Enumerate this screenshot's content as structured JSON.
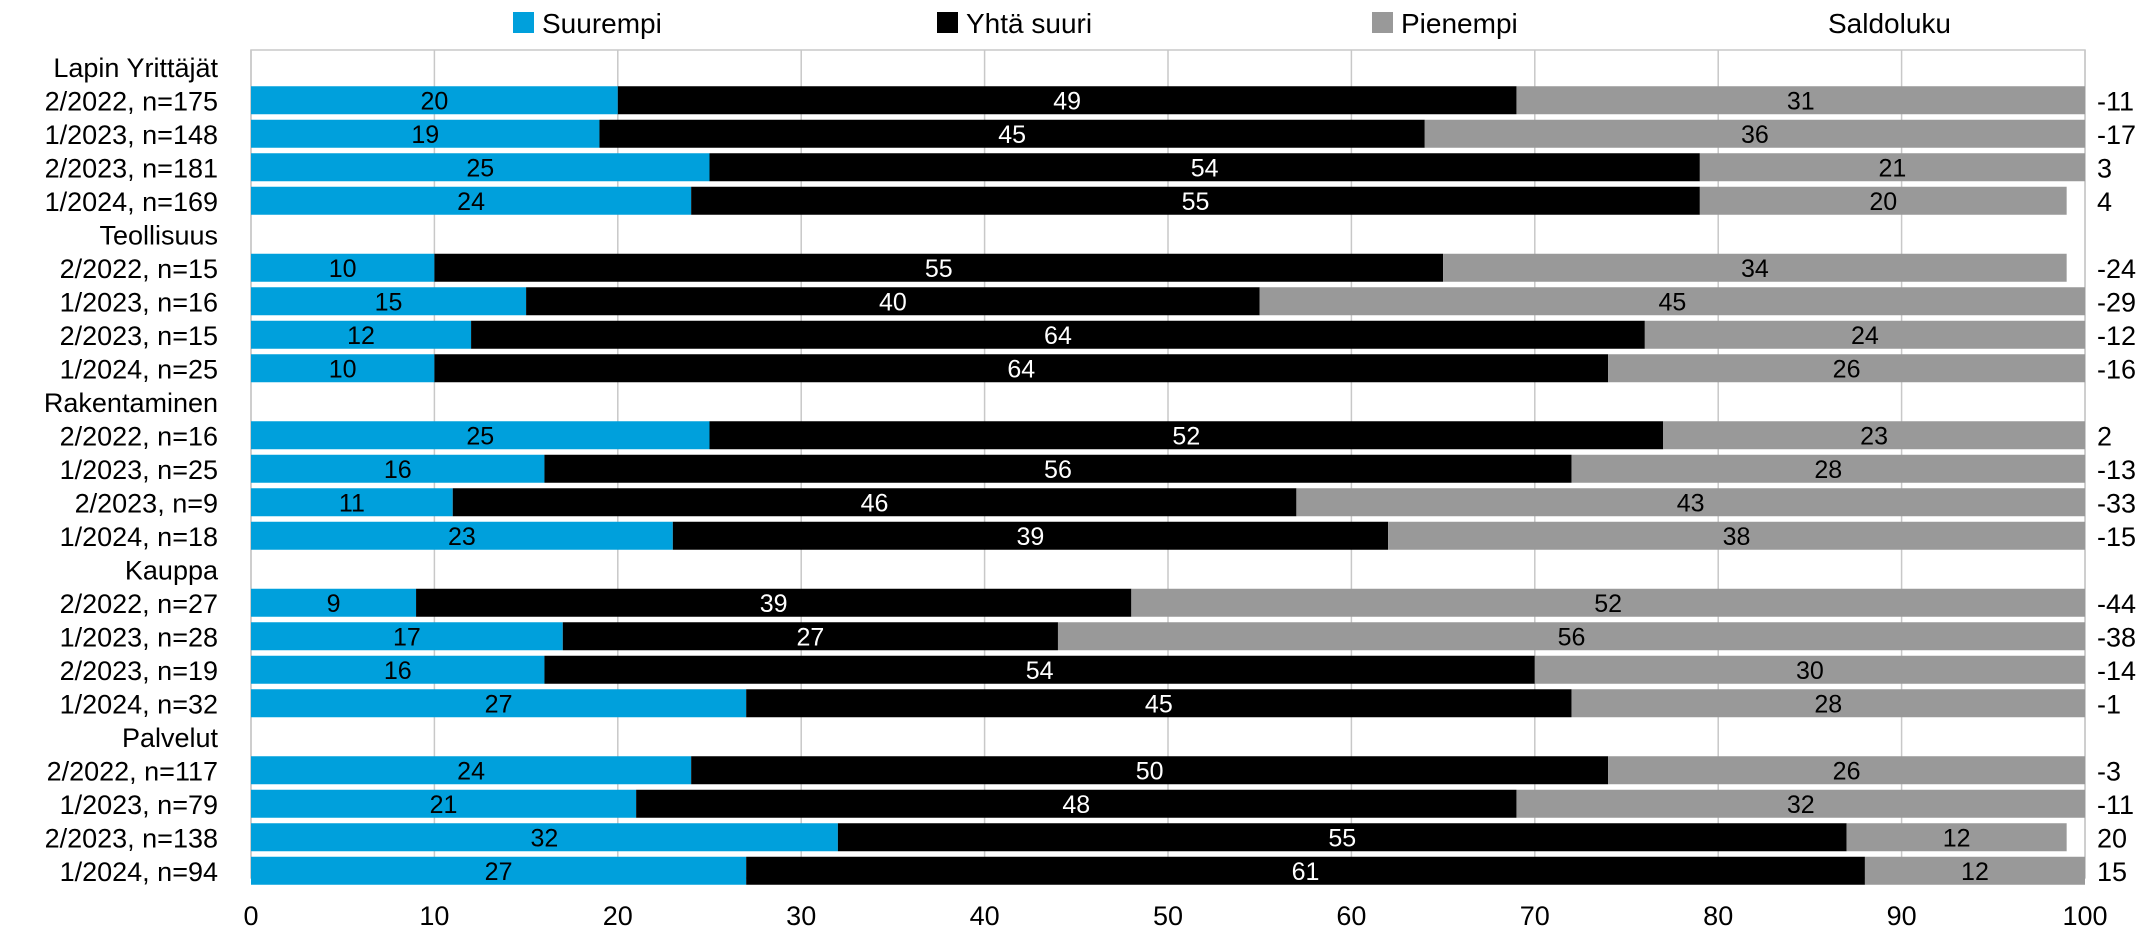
{
  "chart_data": {
    "type": "bar",
    "orientation": "horizontal",
    "stacked": true,
    "title": "",
    "xlabel": "",
    "ylabel": "",
    "xlim": [
      0,
      100
    ],
    "x_ticks": [
      0,
      10,
      20,
      30,
      40,
      50,
      60,
      70,
      80,
      90,
      100
    ],
    "grid": "vertical",
    "legend_position": "top",
    "series": [
      {
        "name": "Suurempi",
        "color": "#00A0DC"
      },
      {
        "name": "Yhtä suuri",
        "color": "#000000"
      },
      {
        "name": "Pienempi",
        "color": "#999999"
      }
    ],
    "extra_column_label": "Saldoluku",
    "groups": [
      {
        "name": "Lapin Yrittäjät",
        "rows": [
          {
            "label": "2/2022, n=175",
            "values": [
              20,
              49,
              31
            ],
            "saldo": "-11"
          },
          {
            "label": "1/2023, n=148",
            "values": [
              19,
              45,
              36
            ],
            "saldo": "-17"
          },
          {
            "label": "2/2023, n=181",
            "values": [
              25,
              54,
              21
            ],
            "saldo": "3"
          },
          {
            "label": "1/2024, n=169",
            "values": [
              24,
              55,
              20
            ],
            "saldo": "4"
          }
        ]
      },
      {
        "name": "Teollisuus",
        "rows": [
          {
            "label": "2/2022, n=15",
            "values": [
              10,
              55,
              34
            ],
            "saldo": "-24"
          },
          {
            "label": "1/2023, n=16",
            "values": [
              15,
              40,
              45
            ],
            "saldo": "-29"
          },
          {
            "label": "2/2023, n=15",
            "values": [
              12,
              64,
              24
            ],
            "saldo": "-12"
          },
          {
            "label": "1/2024, n=25",
            "values": [
              10,
              64,
              26
            ],
            "saldo": "-16"
          }
        ]
      },
      {
        "name": "Rakentaminen",
        "rows": [
          {
            "label": "2/2022, n=16",
            "values": [
              25,
              52,
              23
            ],
            "saldo": "2"
          },
          {
            "label": "1/2023, n=25",
            "values": [
              16,
              56,
              28
            ],
            "saldo": "-13"
          },
          {
            "label": "2/2023, n=9",
            "values": [
              11,
              46,
              43
            ],
            "saldo": "-33"
          },
          {
            "label": "1/2024, n=18",
            "values": [
              23,
              39,
              38
            ],
            "saldo": "-15"
          }
        ]
      },
      {
        "name": "Kauppa",
        "rows": [
          {
            "label": "2/2022, n=27",
            "values": [
              9,
              39,
              52
            ],
            "saldo": "-44"
          },
          {
            "label": "1/2023, n=28",
            "values": [
              17,
              27,
              56
            ],
            "saldo": "-38"
          },
          {
            "label": "2/2023, n=19",
            "values": [
              16,
              54,
              30
            ],
            "saldo": "-14"
          },
          {
            "label": "1/2024, n=32",
            "values": [
              27,
              45,
              28
            ],
            "saldo": "-1"
          }
        ]
      },
      {
        "name": "Palvelut",
        "rows": [
          {
            "label": "2/2022, n=117",
            "values": [
              24,
              50,
              26
            ],
            "saldo": "-3"
          },
          {
            "label": "1/2023, n=79",
            "values": [
              21,
              48,
              32
            ],
            "saldo": "-11"
          },
          {
            "label": "2/2023, n=138",
            "values": [
              32,
              55,
              12
            ],
            "saldo": "20"
          },
          {
            "label": "1/2024, n=94",
            "values": [
              27,
              61,
              12
            ],
            "saldo": "15"
          }
        ]
      }
    ]
  }
}
